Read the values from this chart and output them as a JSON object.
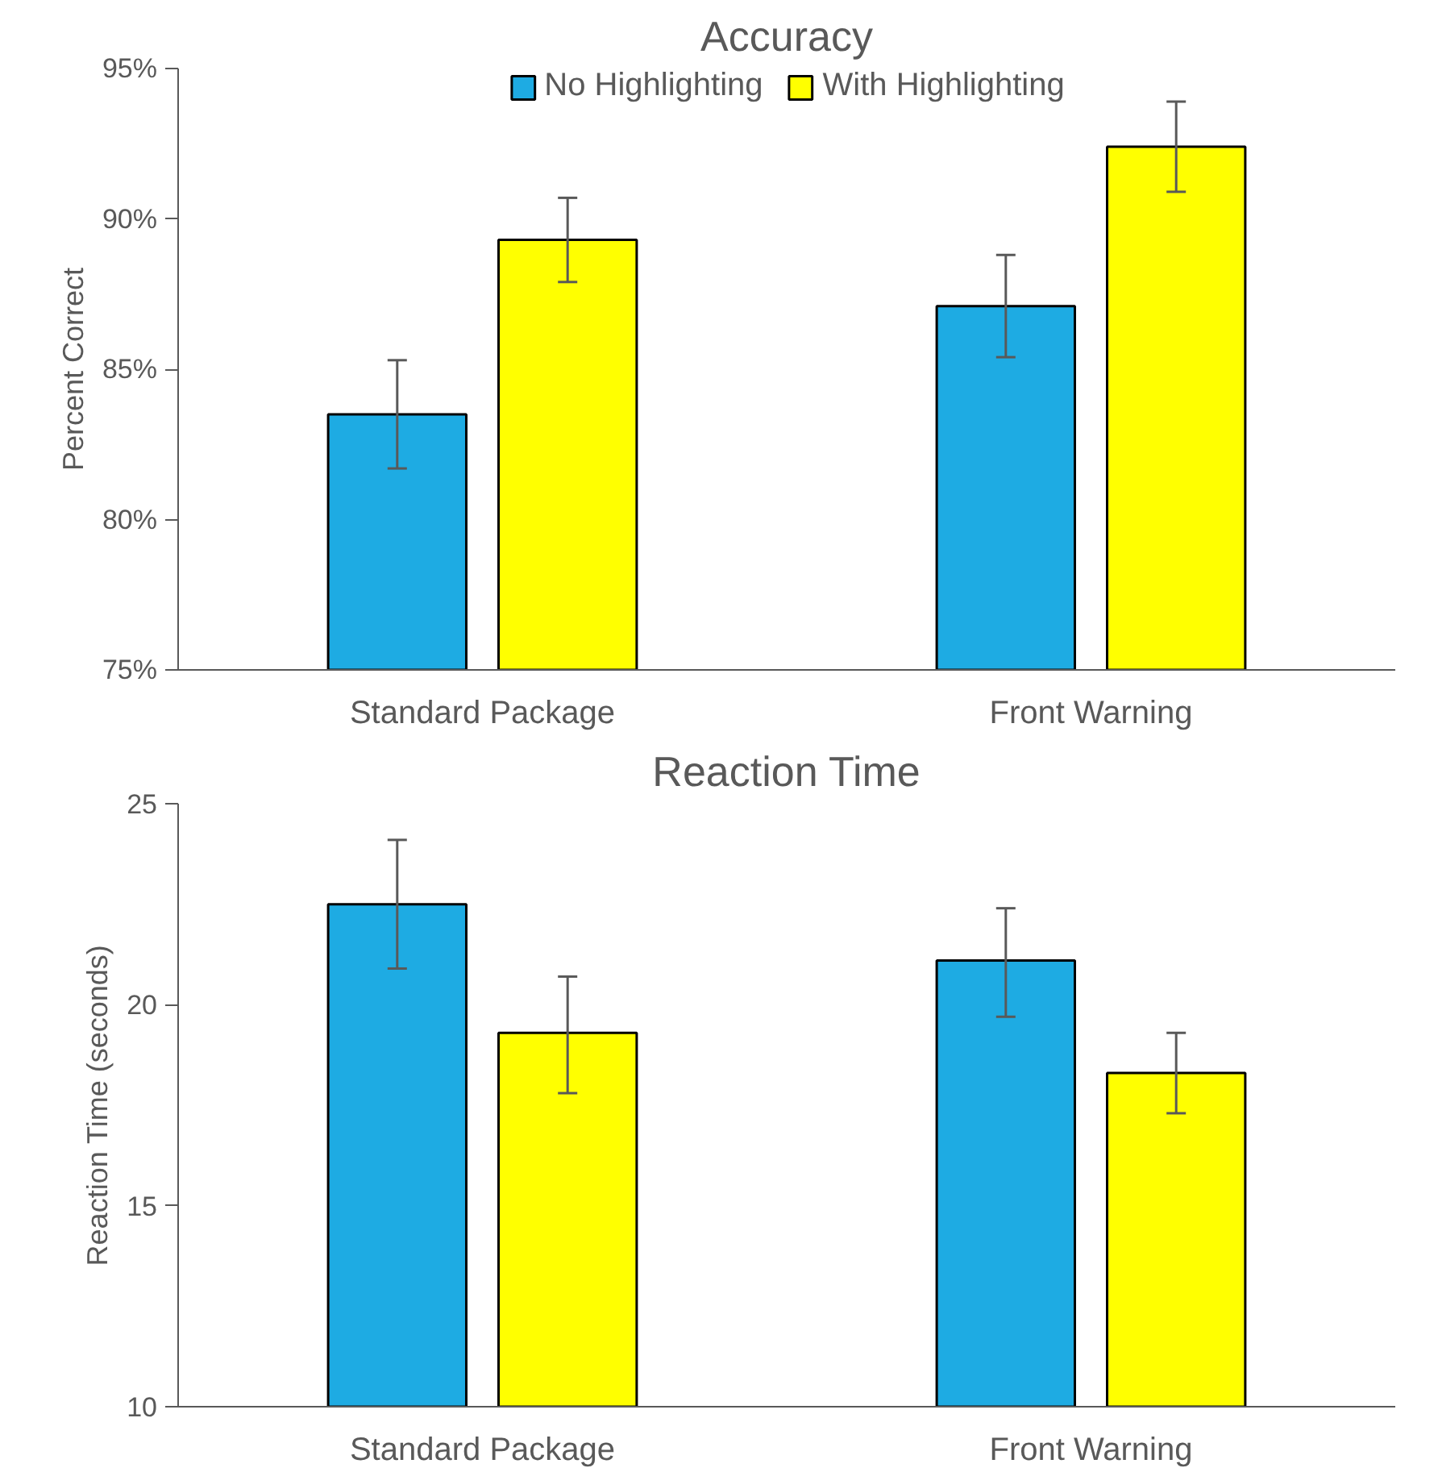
{
  "chart_data": [
    {
      "type": "bar",
      "title": "Accuracy",
      "ylabel": "Percent Correct",
      "categories": [
        "Standard Package",
        "Front Warning"
      ],
      "series": [
        {
          "name": "No Highlighting",
          "color": "#1eabe3",
          "values": [
            83.5,
            87.1
          ],
          "errors": [
            [
              81.7,
              85.3
            ],
            [
              85.4,
              88.8
            ]
          ]
        },
        {
          "name": "With Highlighting",
          "color": "#ffff00",
          "values": [
            89.3,
            92.4
          ],
          "errors": [
            [
              87.9,
              90.7
            ],
            [
              90.9,
              93.9
            ]
          ]
        }
      ],
      "ylim": [
        75,
        95
      ],
      "yticks": [
        {
          "value": 75,
          "label": "75%"
        },
        {
          "value": 80,
          "label": "80%"
        },
        {
          "value": 85,
          "label": "85%"
        },
        {
          "value": 90,
          "label": "90%"
        },
        {
          "value": 95,
          "label": "95%"
        }
      ],
      "legend": "top",
      "grid": false
    },
    {
      "type": "bar",
      "title": "Reaction Time",
      "ylabel": "Reaction Time (seconds)",
      "categories": [
        "Standard Package",
        "Front Warning"
      ],
      "series": [
        {
          "color": "#1eabe3",
          "values": [
            22.5,
            21.1
          ],
          "errors": [
            [
              20.9,
              24.1
            ],
            [
              19.7,
              22.4
            ]
          ]
        },
        {
          "color": "#ffff00",
          "values": [
            19.3,
            18.3
          ],
          "errors": [
            [
              17.8,
              20.7
            ],
            [
              17.3,
              19.3
            ]
          ]
        }
      ],
      "ylim": [
        10,
        25
      ],
      "yticks": [
        10,
        15,
        20,
        25
      ],
      "grid": false
    }
  ]
}
